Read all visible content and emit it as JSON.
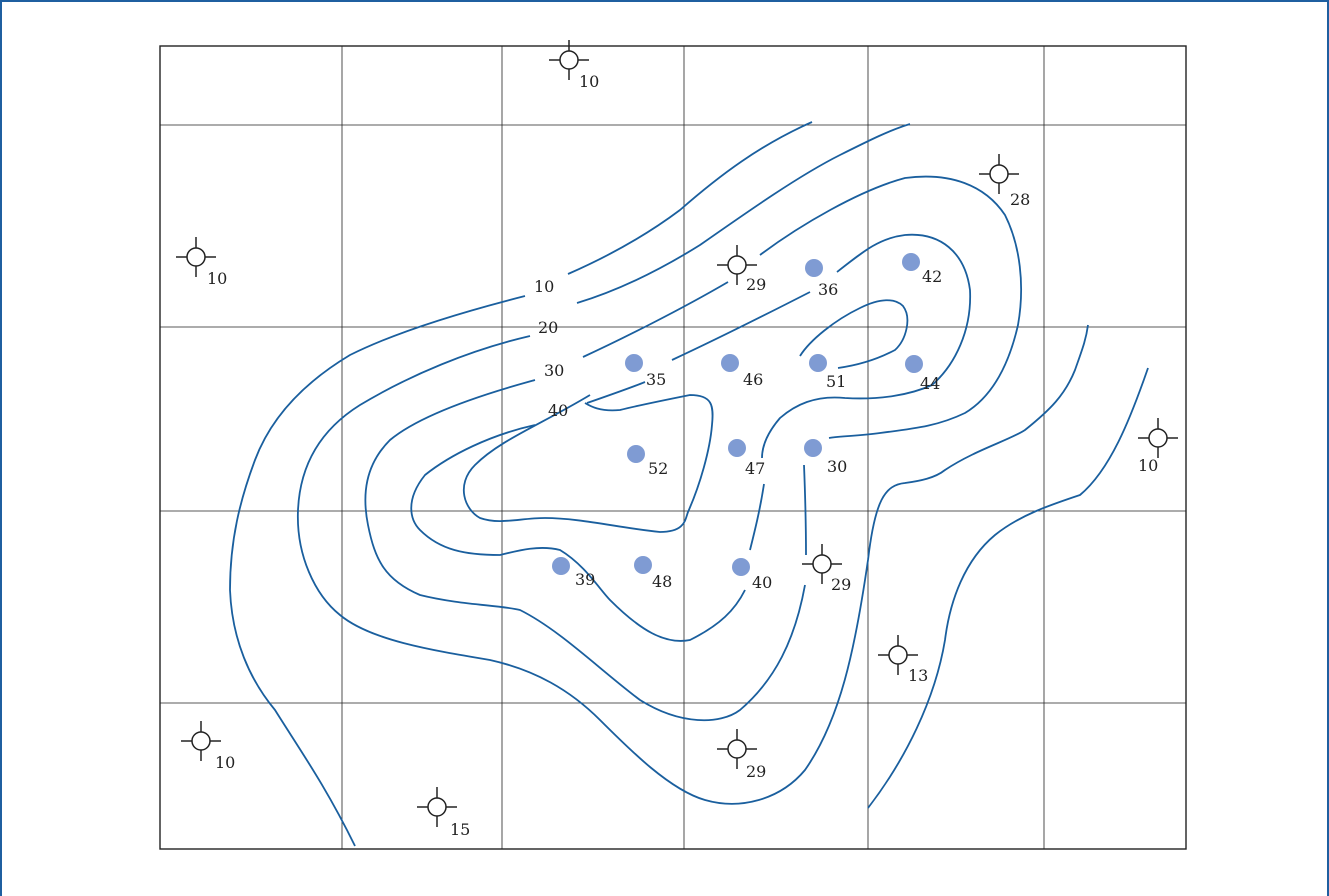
{
  "colors": {
    "frame": "#1f5fa0",
    "contour": "#1a5f9e",
    "producing_well": "#7f9bd3",
    "grid": "#222222",
    "dry_hole_symbol": "#222222"
  },
  "contour_labels": [
    "10",
    "20",
    "30",
    "40"
  ],
  "producing_wells": [
    "36",
    "42",
    "35",
    "46",
    "51",
    "44",
    "52",
    "47",
    "30",
    "39",
    "48",
    "40"
  ],
  "dry_holes": [
    "10",
    "28",
    "10",
    "29",
    "10",
    "29",
    "13",
    "10",
    "29",
    "15"
  ]
}
